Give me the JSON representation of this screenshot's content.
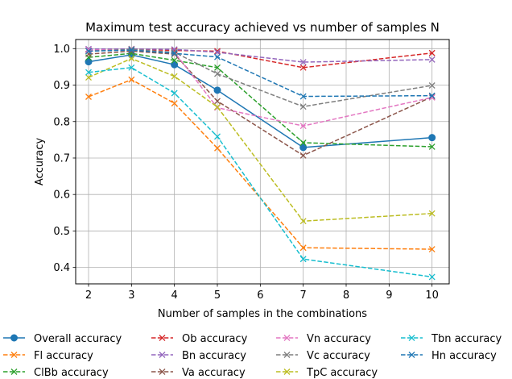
{
  "chart_data": {
    "type": "line",
    "title": "Maximum test accuracy achieved vs number of samples N",
    "xlabel": "Number of samples in the combinations",
    "ylabel": "Accuracy",
    "xlim": [
      1.7,
      10.4
    ],
    "ylim": [
      0.355,
      1.025
    ],
    "xticks": [
      2,
      3,
      4,
      5,
      6,
      7,
      8,
      9,
      10
    ],
    "yticks": [
      0.4,
      0.5,
      0.6,
      0.7,
      0.8,
      0.9,
      1.0
    ],
    "ytick_labels": [
      "0.4",
      "0.5",
      "0.6",
      "0.7",
      "0.8",
      "0.9",
      "1.0"
    ],
    "grid": true,
    "legend_placement": "below",
    "x": [
      2,
      3,
      4,
      5,
      7,
      10
    ],
    "series": [
      {
        "name": "Overall accuracy",
        "color": "#1f77b4",
        "dash": "solid",
        "marker": "circle",
        "values": [
          0.964,
          0.983,
          0.956,
          0.886,
          0.729,
          0.756
        ]
      },
      {
        "name": "Fl accuracy",
        "color": "#ff7f0e",
        "dash": "dashed",
        "marker": "x",
        "values": [
          0.868,
          0.915,
          0.85,
          0.727,
          0.454,
          0.45
        ]
      },
      {
        "name": "ClBb accuracy",
        "color": "#2ca02c",
        "dash": "dashed",
        "marker": "x",
        "values": [
          0.976,
          0.987,
          0.968,
          0.948,
          0.742,
          0.731
        ]
      },
      {
        "name": "Ob accuracy",
        "color": "#d62728",
        "dash": "dashed",
        "marker": "x",
        "values": [
          0.996,
          0.999,
          0.995,
          0.993,
          0.948,
          0.988
        ]
      },
      {
        "name": "Bn accuracy",
        "color": "#9467bd",
        "dash": "dashed",
        "marker": "x",
        "values": [
          0.999,
          0.999,
          0.998,
          0.99,
          0.963,
          0.97
        ]
      },
      {
        "name": "Va accuracy",
        "color": "#8c564b",
        "dash": "dashed",
        "marker": "x",
        "values": [
          0.985,
          0.993,
          0.985,
          0.856,
          0.707,
          0.868
        ]
      },
      {
        "name": "Vn accuracy",
        "color": "#e377c2",
        "dash": "dashed",
        "marker": "x",
        "values": [
          0.996,
          0.997,
          0.99,
          0.838,
          0.788,
          0.866
        ]
      },
      {
        "name": "Vc accuracy",
        "color": "#7f7f7f",
        "dash": "dashed",
        "marker": "x",
        "values": [
          0.993,
          0.998,
          0.99,
          0.931,
          0.841,
          0.899
        ]
      },
      {
        "name": "TpC accuracy",
        "color": "#bcbd22",
        "dash": "dashed",
        "marker": "x",
        "values": [
          0.921,
          0.973,
          0.924,
          0.84,
          0.527,
          0.548
        ]
      },
      {
        "name": "Tbn accuracy",
        "color": "#17becf",
        "dash": "dashed",
        "marker": "x",
        "values": [
          0.935,
          0.948,
          0.878,
          0.759,
          0.423,
          0.374
        ]
      },
      {
        "name": "Hn accuracy",
        "color": "#1f77b4",
        "dash": "dashed",
        "marker": "x",
        "values": [
          0.993,
          0.996,
          0.987,
          0.977,
          0.869,
          0.871
        ]
      }
    ]
  }
}
